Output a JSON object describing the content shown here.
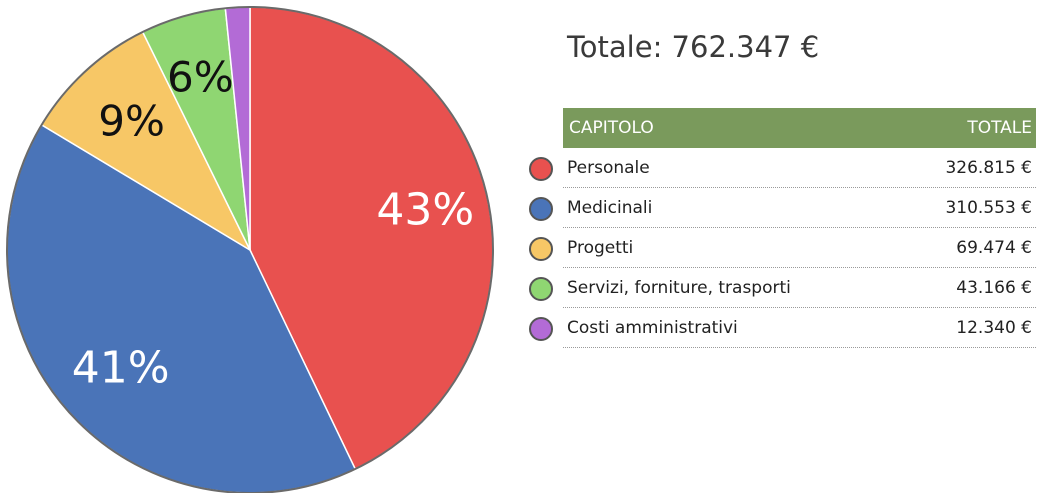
{
  "total_label": "Totale: 762.347 €",
  "table": {
    "header_capitolo": "CAPITOLO",
    "header_totale": "TOTALE"
  },
  "chart_data": {
    "type": "pie",
    "title": "",
    "slices": [
      {
        "label": "Personale",
        "value": 326815,
        "value_label": "326.815 €",
        "percent_label": "43%",
        "color": "#e8514f"
      },
      {
        "label": "Medicinali",
        "value": 310553,
        "value_label": "310.553 €",
        "percent_label": "41%",
        "color": "#4a74b8"
      },
      {
        "label": "Progetti",
        "value": 69474,
        "value_label": "69.474 €",
        "percent_label": "9%",
        "color": "#f7c766"
      },
      {
        "label": "Servizi, forniture, trasporti",
        "value": 43166,
        "value_label": "43.166 €",
        "percent_label": "6%",
        "color": "#8fd672"
      },
      {
        "label": "Costi amministrativi",
        "value": 12340,
        "value_label": "12.340 €",
        "percent_label": "",
        "color": "#b36bd6"
      }
    ],
    "percent_label_colors": [
      "#ffffff",
      "#ffffff",
      "#111111",
      "#111111",
      "#111111"
    ]
  }
}
